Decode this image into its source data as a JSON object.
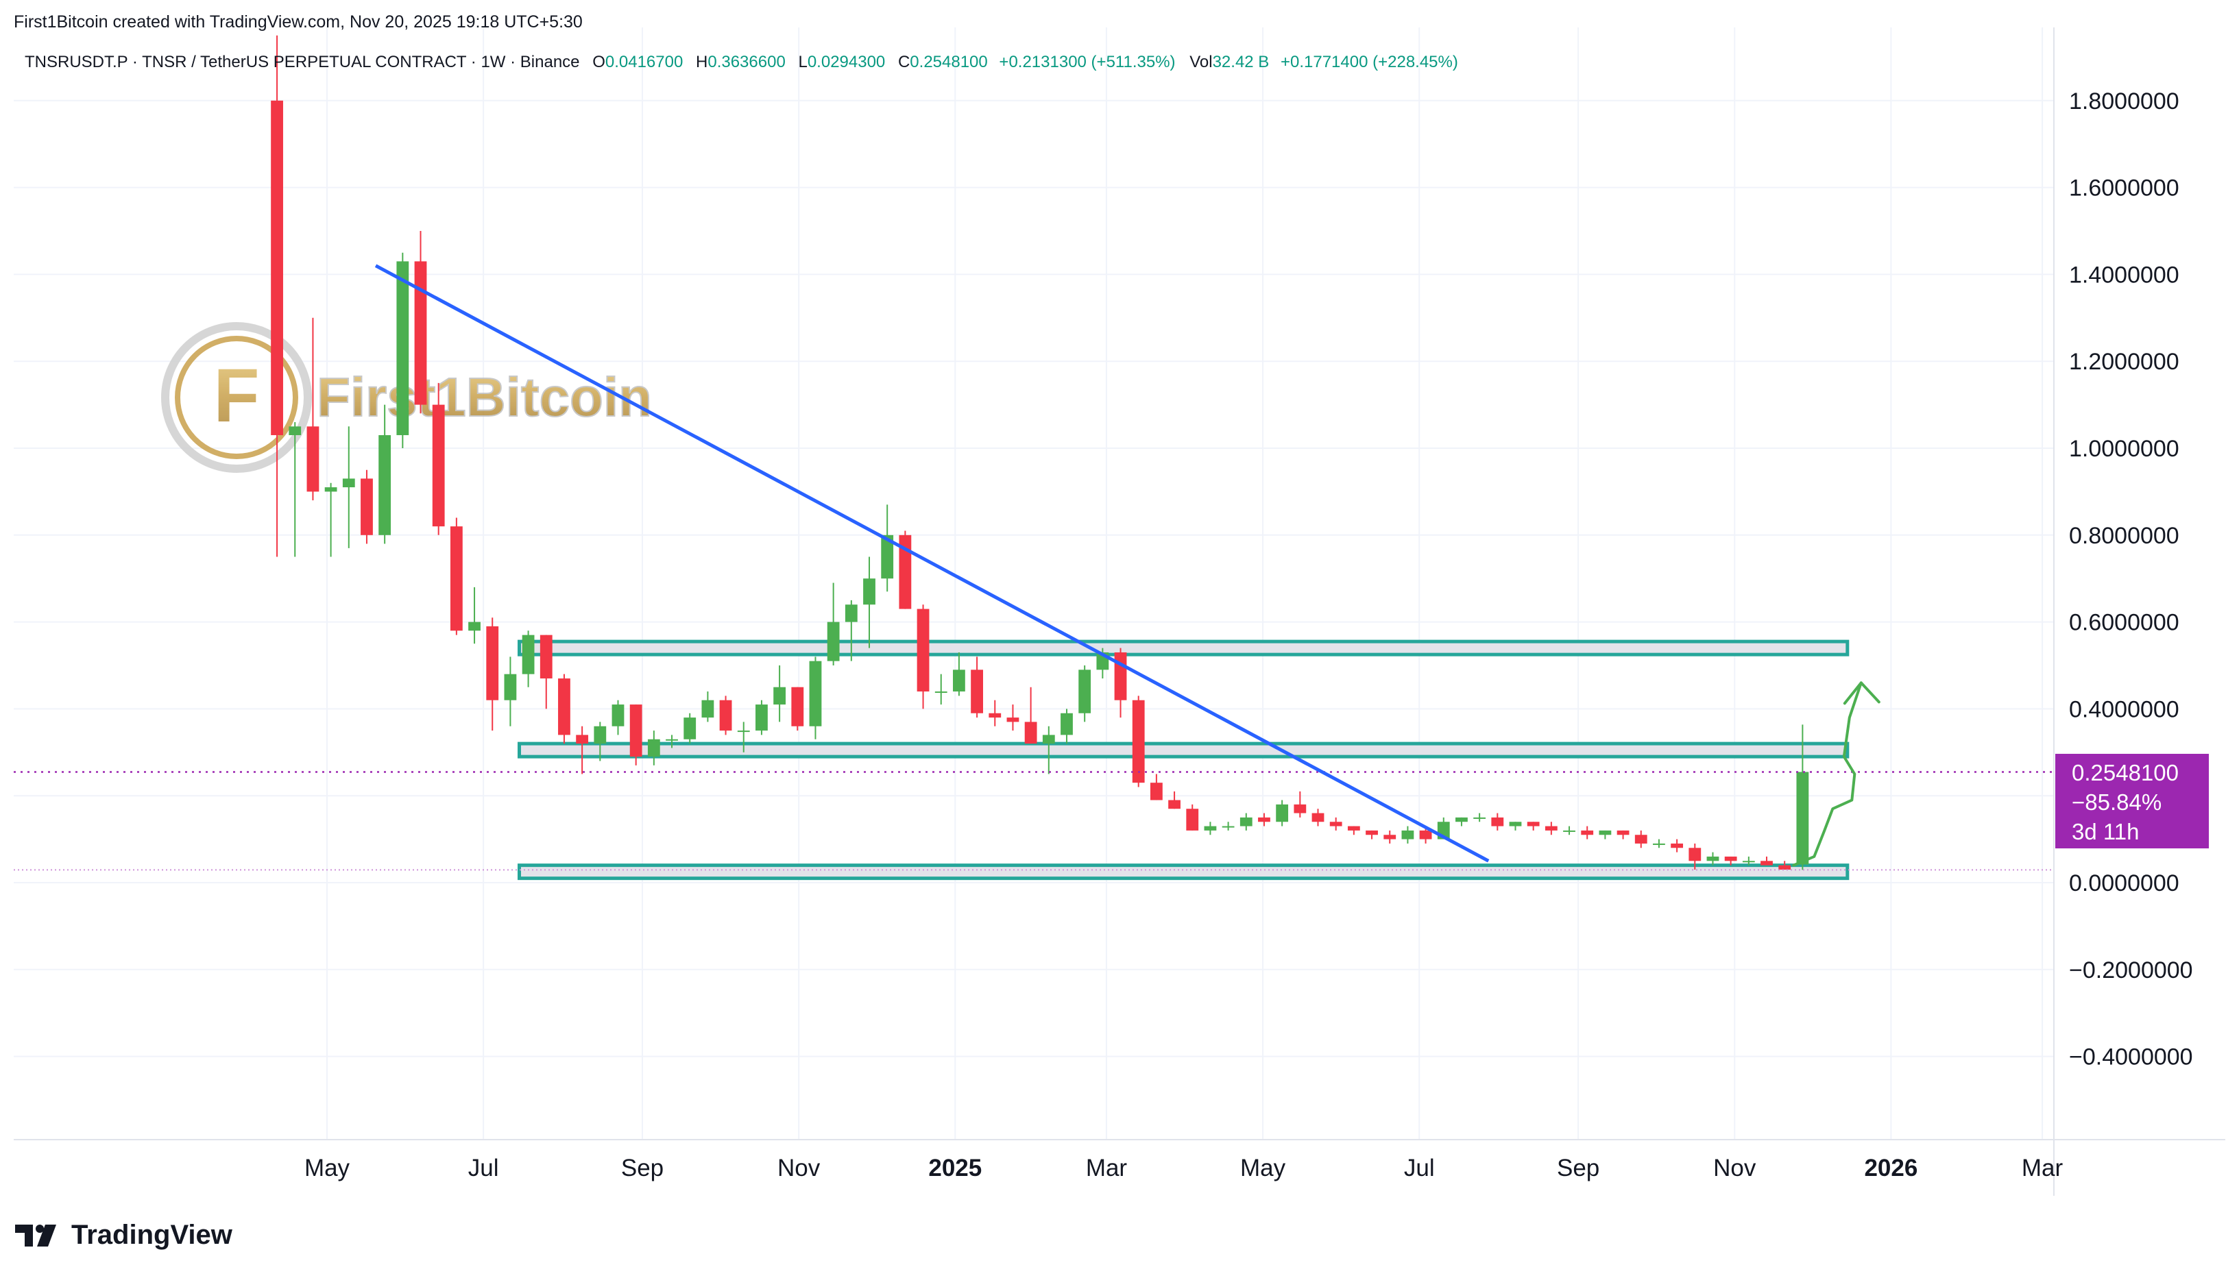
{
  "header": {
    "credit": "First1Bitcoin created with TradingView.com, Nov 20, 2025 19:18 UTC+5:30"
  },
  "legend": {
    "symbol": "TNSRUSDT.P · TNSR / TetherUS PERPETUAL CONTRACT · 1W · Binance",
    "o_label": "O",
    "o_value": "0.0416700",
    "h_label": "H",
    "h_value": "0.3636600",
    "l_label": "L",
    "l_value": "0.0294300",
    "c_label": "C",
    "c_value": "0.2548100",
    "change": "+0.2131300 (+511.35%)",
    "vol_label": "Vol",
    "vol_value": "32.42 B",
    "vol_change": "+0.1771400 (+228.45%)"
  },
  "price_badge": {
    "price": "0.2548100",
    "change": "−85.84%",
    "countdown": "3d 11h",
    "color": "#9c27b0"
  },
  "watermark": {
    "text": "First1Bitcoin"
  },
  "footer": {
    "brand": "TradingView"
  },
  "colors": {
    "up": "#4caf50",
    "down": "#f23645",
    "trendline": "#2962ff",
    "zone_border": "#26a69a",
    "zone_fill": "#e3e3ea",
    "arrow": "#4caf50",
    "price_line": "#9c27b0"
  },
  "chart_data": {
    "type": "candlestick",
    "title": "TNSRUSDT.P · TNSR / TetherUS PERPETUAL CONTRACT · 1W · Binance",
    "ylim": [
      -0.58,
      1.95
    ],
    "yticks": [
      "1.8000000",
      "1.6000000",
      "1.4000000",
      "1.2000000",
      "1.0000000",
      "0.8000000",
      "0.6000000",
      "0.4000000",
      "0.2000000",
      "0.0000000",
      "−0.2000000",
      "−0.4000000"
    ],
    "ytick_values": [
      1.8,
      1.6,
      1.4,
      1.2,
      1.0,
      0.8,
      0.6,
      0.4,
      0.2,
      0.0,
      -0.2,
      -0.4
    ],
    "xticks": [
      {
        "label": "May",
        "date": "2024-05-01",
        "bold": false
      },
      {
        "label": "Jul",
        "date": "2024-07-01",
        "bold": false
      },
      {
        "label": "Sep",
        "date": "2024-09-01",
        "bold": false
      },
      {
        "label": "Nov",
        "date": "2024-11-01",
        "bold": false
      },
      {
        "label": "2025",
        "date": "2025-01-01",
        "bold": true
      },
      {
        "label": "Mar",
        "date": "2025-03-01",
        "bold": false
      },
      {
        "label": "May",
        "date": "2025-05-01",
        "bold": false
      },
      {
        "label": "Jul",
        "date": "2025-07-01",
        "bold": false
      },
      {
        "label": "Sep",
        "date": "2025-09-01",
        "bold": false
      },
      {
        "label": "Nov",
        "date": "2025-11-01",
        "bold": false
      },
      {
        "label": "2026",
        "date": "2026-01-01",
        "bold": true
      },
      {
        "label": "Mar",
        "date": "2026-03-01",
        "bold": false
      }
    ],
    "x_start": "2024-04-08",
    "bar_interval_days": 7,
    "candles": [
      [
        1.8,
        1.95,
        0.75,
        1.03
      ],
      [
        1.03,
        1.06,
        0.75,
        1.05
      ],
      [
        1.05,
        1.3,
        0.88,
        0.9
      ],
      [
        0.9,
        0.92,
        0.75,
        0.91
      ],
      [
        0.91,
        1.05,
        0.77,
        0.93
      ],
      [
        0.93,
        0.95,
        0.78,
        0.8
      ],
      [
        0.8,
        1.1,
        0.78,
        1.03
      ],
      [
        1.03,
        1.45,
        1.0,
        1.43
      ],
      [
        1.43,
        1.5,
        1.08,
        1.1
      ],
      [
        1.1,
        1.15,
        0.8,
        0.82
      ],
      [
        0.82,
        0.84,
        0.57,
        0.58
      ],
      [
        0.58,
        0.68,
        0.55,
        0.6
      ],
      [
        0.59,
        0.61,
        0.35,
        0.42
      ],
      [
        0.42,
        0.52,
        0.36,
        0.48
      ],
      [
        0.48,
        0.58,
        0.45,
        0.57
      ],
      [
        0.57,
        0.57,
        0.4,
        0.47
      ],
      [
        0.47,
        0.48,
        0.32,
        0.34
      ],
      [
        0.34,
        0.36,
        0.25,
        0.32
      ],
      [
        0.32,
        0.37,
        0.28,
        0.36
      ],
      [
        0.36,
        0.42,
        0.34,
        0.41
      ],
      [
        0.41,
        0.41,
        0.27,
        0.29
      ],
      [
        0.29,
        0.35,
        0.27,
        0.33
      ],
      [
        0.33,
        0.34,
        0.31,
        0.33
      ],
      [
        0.33,
        0.39,
        0.32,
        0.38
      ],
      [
        0.38,
        0.44,
        0.37,
        0.42
      ],
      [
        0.42,
        0.43,
        0.34,
        0.35
      ],
      [
        0.35,
        0.37,
        0.3,
        0.35
      ],
      [
        0.35,
        0.42,
        0.34,
        0.41
      ],
      [
        0.41,
        0.5,
        0.37,
        0.45
      ],
      [
        0.45,
        0.45,
        0.35,
        0.36
      ],
      [
        0.36,
        0.52,
        0.33,
        0.51
      ],
      [
        0.51,
        0.69,
        0.5,
        0.6
      ],
      [
        0.6,
        0.65,
        0.51,
        0.64
      ],
      [
        0.64,
        0.75,
        0.54,
        0.7
      ],
      [
        0.7,
        0.87,
        0.67,
        0.8
      ],
      [
        0.8,
        0.81,
        0.63,
        0.63
      ],
      [
        0.63,
        0.64,
        0.4,
        0.44
      ],
      [
        0.44,
        0.48,
        0.41,
        0.44
      ],
      [
        0.44,
        0.53,
        0.43,
        0.49
      ],
      [
        0.49,
        0.52,
        0.38,
        0.39
      ],
      [
        0.39,
        0.42,
        0.36,
        0.38
      ],
      [
        0.38,
        0.41,
        0.35,
        0.37
      ],
      [
        0.37,
        0.45,
        0.32,
        0.32
      ],
      [
        0.32,
        0.36,
        0.25,
        0.34
      ],
      [
        0.34,
        0.4,
        0.32,
        0.39
      ],
      [
        0.39,
        0.5,
        0.37,
        0.49
      ],
      [
        0.49,
        0.54,
        0.47,
        0.53
      ],
      [
        0.53,
        0.54,
        0.38,
        0.42
      ],
      [
        0.42,
        0.43,
        0.22,
        0.23
      ],
      [
        0.23,
        0.25,
        0.19,
        0.19
      ],
      [
        0.19,
        0.21,
        0.17,
        0.17
      ],
      [
        0.17,
        0.18,
        0.12,
        0.12
      ],
      [
        0.12,
        0.14,
        0.11,
        0.13
      ],
      [
        0.13,
        0.14,
        0.12,
        0.13
      ],
      [
        0.13,
        0.16,
        0.12,
        0.15
      ],
      [
        0.15,
        0.16,
        0.13,
        0.14
      ],
      [
        0.14,
        0.19,
        0.13,
        0.18
      ],
      [
        0.18,
        0.21,
        0.15,
        0.16
      ],
      [
        0.16,
        0.17,
        0.13,
        0.14
      ],
      [
        0.14,
        0.15,
        0.12,
        0.13
      ],
      [
        0.13,
        0.13,
        0.11,
        0.12
      ],
      [
        0.12,
        0.12,
        0.1,
        0.11
      ],
      [
        0.11,
        0.12,
        0.09,
        0.1
      ],
      [
        0.1,
        0.13,
        0.09,
        0.12
      ],
      [
        0.12,
        0.13,
        0.09,
        0.1
      ],
      [
        0.1,
        0.15,
        0.1,
        0.14
      ],
      [
        0.14,
        0.15,
        0.13,
        0.15
      ],
      [
        0.15,
        0.16,
        0.14,
        0.15
      ],
      [
        0.15,
        0.16,
        0.12,
        0.13
      ],
      [
        0.13,
        0.14,
        0.12,
        0.14
      ],
      [
        0.14,
        0.14,
        0.12,
        0.13
      ],
      [
        0.13,
        0.14,
        0.11,
        0.12
      ],
      [
        0.12,
        0.13,
        0.11,
        0.12
      ],
      [
        0.12,
        0.13,
        0.1,
        0.11
      ],
      [
        0.11,
        0.12,
        0.1,
        0.12
      ],
      [
        0.12,
        0.12,
        0.1,
        0.11
      ],
      [
        0.11,
        0.12,
        0.08,
        0.09
      ],
      [
        0.09,
        0.1,
        0.08,
        0.09
      ],
      [
        0.09,
        0.1,
        0.07,
        0.08
      ],
      [
        0.08,
        0.09,
        0.03,
        0.05
      ],
      [
        0.05,
        0.07,
        0.04,
        0.06
      ],
      [
        0.06,
        0.06,
        0.04,
        0.05
      ],
      [
        0.05,
        0.06,
        0.04,
        0.05
      ],
      [
        0.05,
        0.06,
        0.04,
        0.04
      ],
      [
        0.04,
        0.05,
        0.03,
        0.03
      ],
      [
        0.0417,
        0.3637,
        0.0294,
        0.2548
      ]
    ],
    "trendline": {
      "from": [
        "2024-05-20",
        1.42
      ],
      "to": [
        "2025-07-28",
        0.05
      ]
    },
    "zones": [
      {
        "y_low": 0.525,
        "y_high": 0.555,
        "from": "2024-07-15",
        "to": "2025-12-15"
      },
      {
        "y_low": 0.29,
        "y_high": 0.32,
        "from": "2024-07-15",
        "to": "2025-12-15"
      },
      {
        "y_low": 0.01,
        "y_high": 0.04,
        "from": "2024-07-15",
        "to": "2025-12-15"
      }
    ],
    "last_price": 0.2548,
    "low_line": 0.0294,
    "legend": "none",
    "grid": true
  }
}
